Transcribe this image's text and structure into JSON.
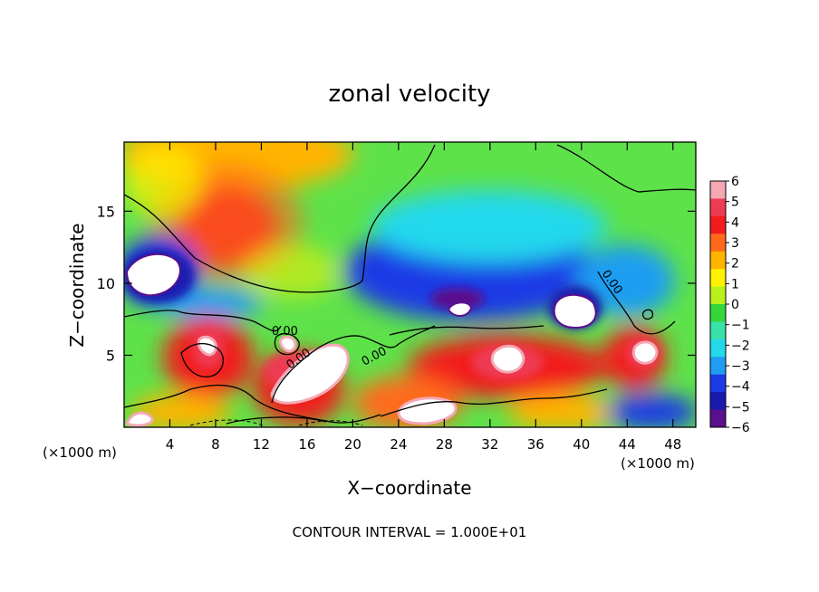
{
  "chart_data": {
    "type": "heatmap",
    "title": "zonal velocity",
    "xlabel": "X−coordinate",
    "ylabel": "Z−coordinate",
    "x_unit_left": "(×1000 m)",
    "x_unit_right": "(×1000 m)",
    "footer": "CONTOUR INTERVAL = 1.000E+01",
    "xlim": [
      0,
      50
    ],
    "ylim": [
      0,
      19.8
    ],
    "x_ticks": [
      4,
      8,
      12,
      16,
      20,
      24,
      28,
      32,
      36,
      40,
      44,
      48
    ],
    "y_ticks": [
      5,
      10,
      15
    ],
    "colorbar": {
      "range": [
        -6,
        6
      ],
      "labels": [
        "6",
        "5",
        "4",
        "3",
        "2",
        "1",
        "0",
        "−1",
        "−2",
        "−3",
        "−4",
        "−5",
        "−6"
      ],
      "colors": [
        "#f4a8b4",
        "#ee3b52",
        "#f21c1c",
        "#ff6a1a",
        "#ffb400",
        "#fff200",
        "#b8f21a",
        "#34d63a",
        "#38e2a8",
        "#24d8ec",
        "#1f9df2",
        "#1a3ae6",
        "#1a1ab0",
        "#5a0f8c"
      ]
    },
    "contour_labels": [
      "0.00",
      "0.00",
      "0.00",
      "0.00"
    ],
    "features": [
      {
        "type": "max",
        "x": 9.5,
        "z": 13.5,
        "value": 4
      },
      {
        "type": "max",
        "x": 18,
        "z": 4.5,
        "value": 6
      },
      {
        "type": "max",
        "x": 28,
        "z": 2.5,
        "value": 6
      },
      {
        "type": "max",
        "x": 34,
        "z": 4.5,
        "value": 6
      },
      {
        "type": "max",
        "x": 44.5,
        "z": 5,
        "value": 6
      },
      {
        "type": "min",
        "x": 3,
        "z": 10.5,
        "value": -6
      },
      {
        "type": "min",
        "x": 29,
        "z": 9.5,
        "value": -6
      },
      {
        "type": "min",
        "x": 39,
        "z": 8.5,
        "value": -6
      },
      {
        "type": "min",
        "x": 30,
        "z": 12,
        "value": -5
      }
    ]
  }
}
